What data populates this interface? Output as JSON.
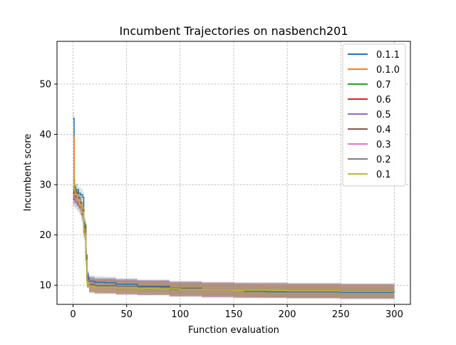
{
  "chart_data": {
    "type": "line",
    "title": "Incumbent Trajectories on nasbench201",
    "xlabel": "Function evaluation",
    "ylabel": "Incumbent score",
    "xlim": [
      -15,
      315
    ],
    "ylim": [
      6.2,
      58.5
    ],
    "xticks": [
      0,
      50,
      100,
      150,
      200,
      250,
      300
    ],
    "yticks": [
      10,
      20,
      30,
      40,
      50
    ],
    "grid": true,
    "legend_position": "top-right",
    "series": [
      {
        "name": "0.1.1",
        "color": "#1f77b4",
        "x": [
          0,
          1,
          2,
          3,
          5,
          7,
          9,
          10,
          11,
          12,
          13,
          14,
          15,
          20,
          30,
          40,
          60,
          90,
          120,
          150,
          160,
          180,
          200,
          220,
          250,
          280,
          300
        ],
        "y": [
          43.2,
          29.5,
          28.5,
          29.0,
          28.3,
          28.0,
          27.5,
          22.5,
          20.0,
          16.0,
          12.0,
          11.5,
          10.8,
          10.6,
          10.5,
          10.2,
          9.8,
          9.4,
          9.1,
          9.0,
          8.8,
          8.7,
          8.7,
          8.7,
          8.6,
          8.6,
          8.6
        ],
        "band": 1.2
      },
      {
        "name": "0.1.0",
        "color": "#ff7f0e",
        "x": [
          0,
          1,
          2,
          4,
          6,
          8,
          10,
          11,
          12,
          13,
          15,
          20,
          40,
          60,
          90,
          120,
          150,
          200,
          250,
          300
        ],
        "y": [
          39.6,
          30.0,
          28.0,
          27.0,
          26.5,
          25.5,
          21.5,
          20.0,
          15.0,
          11.0,
          10.0,
          9.8,
          9.6,
          9.5,
          9.2,
          9.1,
          9.0,
          8.9,
          8.8,
          8.7
        ],
        "band": 1.3
      },
      {
        "name": "0.7",
        "color": "#2ca02c",
        "x": [
          0,
          1,
          2,
          4,
          6,
          8,
          10,
          12,
          13,
          15,
          20,
          40,
          60,
          90,
          120,
          150,
          200,
          250,
          300
        ],
        "y": [
          29.5,
          28.5,
          28.0,
          27.0,
          26.5,
          25.0,
          22.0,
          16.0,
          11.0,
          10.2,
          9.9,
          9.7,
          9.5,
          9.3,
          9.1,
          9.0,
          8.9,
          8.8,
          8.7
        ],
        "band": 1.4
      },
      {
        "name": "0.6",
        "color": "#d62728",
        "x": [
          0,
          1,
          2,
          4,
          6,
          8,
          10,
          12,
          13,
          15,
          20,
          40,
          60,
          90,
          120,
          150,
          200,
          250,
          300
        ],
        "y": [
          28.5,
          28.0,
          27.5,
          27.0,
          26.0,
          24.5,
          21.0,
          15.5,
          11.0,
          10.0,
          9.8,
          9.6,
          9.5,
          9.2,
          9.1,
          9.0,
          8.9,
          8.8,
          8.7
        ],
        "band": 1.4
      },
      {
        "name": "0.5",
        "color": "#9467bd",
        "x": [
          0,
          1,
          2,
          4,
          6,
          8,
          10,
          12,
          13,
          15,
          20,
          40,
          60,
          90,
          120,
          150,
          200,
          250,
          300
        ],
        "y": [
          27.5,
          27.5,
          27.0,
          26.5,
          26.0,
          24.5,
          21.0,
          15.0,
          11.0,
          10.2,
          9.9,
          9.7,
          9.5,
          9.3,
          9.1,
          9.0,
          8.9,
          8.8,
          8.7
        ],
        "band": 1.5
      },
      {
        "name": "0.4",
        "color": "#8c564b",
        "x": [
          0,
          1,
          2,
          4,
          6,
          8,
          10,
          12,
          13,
          15,
          20,
          40,
          60,
          90,
          120,
          150,
          200,
          250,
          300
        ],
        "y": [
          27.0,
          29.5,
          28.5,
          27.5,
          26.5,
          25.0,
          21.5,
          15.5,
          11.2,
          10.1,
          9.9,
          9.7,
          9.6,
          9.3,
          9.1,
          9.0,
          8.9,
          8.8,
          8.7
        ],
        "band": 1.6
      },
      {
        "name": "0.3",
        "color": "#e377c2",
        "x": [
          0,
          1,
          2,
          4,
          6,
          8,
          10,
          12,
          13,
          15,
          20,
          40,
          60,
          90,
          120,
          150,
          200,
          250,
          300
        ],
        "y": [
          28.0,
          27.5,
          27.0,
          26.5,
          25.5,
          24.0,
          20.5,
          15.0,
          11.0,
          10.0,
          9.8,
          9.6,
          9.5,
          9.2,
          9.1,
          9.0,
          8.9,
          8.8,
          8.7
        ],
        "band": 1.4
      },
      {
        "name": "0.2",
        "color": "#7f7f7f",
        "x": [
          0,
          1,
          2,
          4,
          6,
          8,
          10,
          12,
          13,
          15,
          20,
          40,
          60,
          90,
          120,
          150,
          200,
          250,
          300
        ],
        "y": [
          27.5,
          27.0,
          26.5,
          26.0,
          25.5,
          24.0,
          20.5,
          15.0,
          11.0,
          10.0,
          9.8,
          9.6,
          9.5,
          9.2,
          9.1,
          9.0,
          8.9,
          8.8,
          8.7
        ],
        "band": 1.5
      },
      {
        "name": "0.1",
        "color": "#bcbd22",
        "x": [
          0,
          1,
          2,
          4,
          6,
          8,
          10,
          11,
          12,
          13,
          15,
          20,
          40,
          60,
          80,
          90,
          100,
          120,
          150,
          200,
          250,
          300
        ],
        "y": [
          30.0,
          29.0,
          28.0,
          27.0,
          26.0,
          24.5,
          21.0,
          20.0,
          15.0,
          10.5,
          9.8,
          9.6,
          9.5,
          9.4,
          9.3,
          9.3,
          9.2,
          9.1,
          9.0,
          8.9,
          8.8,
          8.7
        ],
        "band": 1.2
      }
    ]
  }
}
